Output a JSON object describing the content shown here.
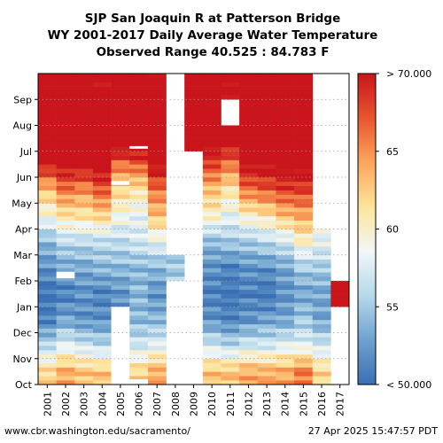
{
  "chart_data": {
    "type": "heatmap",
    "title_lines": [
      "SJP San Joaquin R at Patterson Bridge",
      "WY 2001-2017 Daily Average Water Temperature",
      "Observed Range 40.525 : 84.783 F"
    ],
    "x_categories": [
      "2001",
      "2002",
      "2003",
      "2004",
      "2005",
      "2006",
      "2007",
      "2008",
      "2009",
      "2010",
      "2011",
      "2012",
      "2013",
      "2014",
      "2015",
      "2016",
      "2017"
    ],
    "y_categories": [
      "Oct",
      "Nov",
      "Dec",
      "Jan",
      "Feb",
      "Mar",
      "Apr",
      "May",
      "Jun",
      "Jul",
      "Aug",
      "Sep"
    ],
    "x_axis_label": "",
    "y_axis_label": "",
    "colorbar": {
      "min": 50,
      "max": 70,
      "tick_values": [
        70,
        65,
        60,
        55,
        50
      ],
      "tick_labels": [
        "> 70.000",
        "65",
        "60",
        "55",
        "< 50.000"
      ],
      "colors": [
        "#3a6fb4",
        "#6ea2cd",
        "#b7d8ea",
        "#f1f7f7",
        "#fde49a",
        "#fba65c",
        "#e8552e",
        "#c9151b"
      ]
    },
    "monthly_mean_temperature_F": [
      [
        62,
        56,
        51,
        50,
        52,
        54,
        59,
        63,
        70,
        74,
        75,
        72
      ],
      [
        64,
        58,
        53,
        51,
        53,
        56,
        61,
        66,
        71,
        75,
        76,
        73
      ],
      [
        63,
        57,
        52,
        52,
        53,
        56,
        61,
        65,
        71,
        74,
        76,
        72
      ],
      [
        63,
        56,
        52,
        51,
        54,
        56,
        62,
        67,
        72,
        75,
        75,
        71
      ],
      [
        63,
        57,
        53,
        52,
        54,
        56,
        59,
        62,
        66,
        74,
        75,
        73
      ],
      [
        62,
        57,
        54,
        54,
        54,
        57,
        58,
        61,
        67,
        74,
        77,
        72
      ],
      [
        64,
        58,
        54,
        52,
        54,
        58,
        63,
        66,
        71,
        74,
        75,
        71
      ],
      [
        null,
        null,
        null,
        null,
        55,
        null,
        null,
        null,
        null,
        null,
        null,
        null
      ],
      [
        null,
        null,
        null,
        null,
        null,
        null,
        null,
        null,
        null,
        76,
        77,
        74
      ],
      [
        63,
        57,
        52,
        51,
        52,
        54,
        60,
        63,
        68,
        73,
        76,
        72
      ],
      [
        63,
        56,
        51,
        50,
        51,
        55,
        58,
        61,
        66,
        72,
        null,
        71
      ],
      [
        64,
        57,
        52,
        51,
        52,
        55,
        60,
        66,
        71,
        74,
        75,
        72
      ],
      [
        64,
        57,
        53,
        50,
        52,
        56,
        61,
        67,
        71,
        74,
        75,
        73
      ],
      [
        64,
        58,
        53,
        52,
        53,
        57,
        63,
        68,
        72,
        74,
        75,
        72
      ],
      [
        66,
        58,
        55,
        53,
        55,
        60,
        64,
        68,
        72,
        75,
        76,
        73
      ],
      [
        62,
        57,
        53,
        53,
        55,
        58,
        null,
        null,
        null,
        null,
        null,
        null
      ],
      [
        null,
        null,
        null,
        74,
        null,
        null,
        null,
        null,
        null,
        null,
        null,
        null
      ]
    ],
    "gaps": [
      {
        "year": "2002",
        "from_month": 4.1,
        "to_month": 4.35
      },
      {
        "year": "2005",
        "from_month": 0,
        "to_month": 3.0
      },
      {
        "year": "2005",
        "from_month": 7.7,
        "to_month": 7.85
      },
      {
        "year": "2006",
        "from_month": 0,
        "to_month": 0.2
      },
      {
        "year": "2006",
        "from_month": 9.1,
        "to_month": 9.2
      }
    ]
  },
  "footer": {
    "source": "www.cbr.washington.edu/sacramento/",
    "timestamp": "27 Apr 2025 15:47:57 PDT"
  }
}
